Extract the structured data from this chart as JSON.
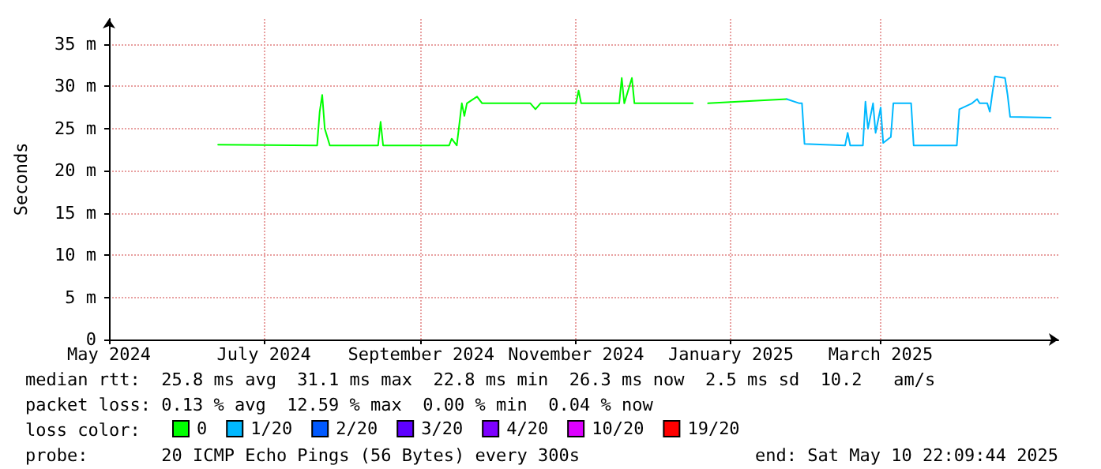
{
  "chart_data": {
    "type": "line",
    "ylabel": "Seconds",
    "x": [
      "2024-06-13",
      "2024-07-22",
      "2024-07-23",
      "2024-07-24",
      "2024-07-25",
      "2024-07-27",
      "2024-08-15",
      "2024-08-16",
      "2024-08-17",
      "2024-09-12",
      "2024-09-13",
      "2024-09-15",
      "2024-09-16",
      "2024-09-17",
      "2024-09-18",
      "2024-09-19",
      "2024-09-23",
      "2024-09-25",
      "2024-10-14",
      "2024-10-16",
      "2024-10-18",
      "2024-11-01",
      "2024-11-02",
      "2024-11-03",
      "2024-11-18",
      "2024-11-19",
      "2024-11-20",
      "2024-11-23",
      "2024-11-24",
      "2024-12-17",
      "2024-12-20",
      "2024-12-23",
      "2025-01-23",
      "2025-01-28",
      "2025-01-29",
      "2025-01-30",
      "2025-02-15",
      "2025-02-16",
      "2025-02-17",
      "2025-02-22",
      "2025-02-23",
      "2025-02-24",
      "2025-02-26",
      "2025-02-27",
      "2025-03-01",
      "2025-03-02",
      "2025-03-05",
      "2025-03-06",
      "2025-03-13",
      "2025-03-14",
      "2025-03-26",
      "2025-03-31",
      "2025-04-01",
      "2025-04-06",
      "2025-04-08",
      "2025-04-09",
      "2025-04-12",
      "2025-04-13",
      "2025-04-14",
      "2025-04-15",
      "2025-04-19",
      "2025-04-20",
      "2025-04-21",
      "2025-05-07"
    ],
    "series": [
      {
        "name": "0",
        "color": "#00ff00",
        "values": [
          23.1,
          23,
          27,
          29,
          25,
          23,
          23,
          25.8,
          23,
          23,
          23.8,
          23,
          25.5,
          28,
          26.5,
          28,
          28.8,
          28,
          28,
          27.3,
          28,
          28,
          29.5,
          28,
          28,
          31,
          28,
          31,
          28,
          28,
          null,
          28,
          28.5,
          null,
          null,
          null,
          null,
          null,
          null,
          null,
          null,
          null,
          null,
          null,
          null,
          null,
          null,
          null,
          null,
          null,
          null,
          null,
          null,
          null,
          null,
          null,
          null,
          null,
          null,
          null,
          null,
          null,
          null,
          null
        ]
      },
      {
        "name": "1/20",
        "color": "#00b8ff",
        "values": [
          null,
          null,
          null,
          null,
          null,
          null,
          null,
          null,
          null,
          null,
          null,
          null,
          null,
          null,
          null,
          null,
          null,
          null,
          null,
          null,
          null,
          null,
          null,
          null,
          null,
          null,
          null,
          null,
          null,
          null,
          null,
          null,
          28.5,
          28,
          28,
          23.2,
          23,
          24.5,
          23,
          23,
          28.2,
          25,
          28,
          24.5,
          27.5,
          23.3,
          24,
          28,
          28,
          23,
          23,
          23,
          27.3,
          28,
          28.5,
          28,
          28,
          27,
          29.2,
          31.2,
          31,
          29,
          26.4,
          26.3
        ]
      },
      {
        "name": "2/20",
        "color": "#0059ff",
        "values": [
          null,
          null,
          null,
          null,
          null,
          null,
          null,
          null,
          null,
          null,
          null,
          null,
          null,
          null,
          null,
          null,
          null,
          null,
          null,
          null,
          null,
          null,
          null,
          null,
          null,
          null,
          null,
          null,
          null,
          null,
          null,
          null,
          null,
          null,
          null,
          null,
          null,
          null,
          null,
          null,
          null,
          null,
          null,
          null,
          null,
          null,
          null,
          null,
          null,
          null,
          null,
          null,
          null,
          null,
          null,
          null,
          null,
          null,
          null,
          null,
          null,
          null,
          null,
          null
        ]
      },
      {
        "name": "3/20",
        "color": "#5e00ff",
        "values": [
          null,
          null,
          null,
          null,
          null,
          null,
          null,
          null,
          null,
          null,
          null,
          null,
          null,
          null,
          null,
          null,
          null,
          null,
          null,
          null,
          null,
          null,
          null,
          null,
          null,
          null,
          null,
          null,
          null,
          null,
          null,
          null,
          null,
          null,
          null,
          null,
          null,
          null,
          null,
          null,
          null,
          null,
          null,
          null,
          null,
          null,
          null,
          null,
          null,
          null,
          null,
          null,
          null,
          null,
          null,
          null,
          null,
          null,
          null,
          null,
          null,
          null,
          null,
          null
        ]
      },
      {
        "name": "4/20",
        "color": "#7e00ff",
        "values": [
          null,
          null,
          null,
          null,
          null,
          null,
          null,
          null,
          null,
          null,
          null,
          null,
          null,
          null,
          null,
          null,
          null,
          null,
          null,
          null,
          null,
          null,
          null,
          null,
          null,
          null,
          null,
          null,
          null,
          null,
          null,
          null,
          null,
          null,
          null,
          null,
          null,
          null,
          null,
          null,
          null,
          null,
          null,
          null,
          null,
          null,
          null,
          null,
          null,
          null,
          null,
          null,
          null,
          null,
          null,
          null,
          null,
          null,
          null,
          null,
          null,
          null,
          null,
          null
        ]
      },
      {
        "name": "10/20",
        "color": "#dd00ff",
        "values": [
          null,
          null,
          null,
          null,
          null,
          null,
          null,
          null,
          null,
          null,
          null,
          null,
          null,
          null,
          null,
          null,
          null,
          null,
          null,
          null,
          null,
          null,
          null,
          null,
          null,
          null,
          null,
          null,
          null,
          null,
          null,
          null,
          null,
          null,
          null,
          null,
          null,
          null,
          null,
          null,
          null,
          null,
          null,
          null,
          null,
          null,
          null,
          null,
          null,
          null,
          null,
          null,
          null,
          null,
          null,
          null,
          null,
          null,
          null,
          null,
          null,
          null,
          null,
          null
        ]
      },
      {
        "name": "19/20",
        "color": "#ff0000",
        "values": [
          null,
          null,
          null,
          null,
          null,
          null,
          null,
          null,
          null,
          null,
          null,
          null,
          null,
          null,
          null,
          null,
          null,
          null,
          null,
          null,
          null,
          null,
          null,
          null,
          null,
          null,
          null,
          null,
          null,
          null,
          null,
          null,
          null,
          null,
          null,
          null,
          null,
          null,
          null,
          null,
          null,
          null,
          null,
          null,
          null,
          null,
          null,
          null,
          null,
          null,
          null,
          null,
          null,
          null,
          null,
          null,
          null,
          null,
          null,
          null,
          null,
          null,
          null,
          null
        ]
      }
    ],
    "xlim": [
      "2024-05-01",
      "2025-05-10"
    ],
    "xticks": [
      {
        "value": "2024-05-01",
        "label": "May 2024"
      },
      {
        "value": "2024-07-01",
        "label": "July 2024"
      },
      {
        "value": "2024-09-01",
        "label": "September 2024"
      },
      {
        "value": "2024-11-01",
        "label": "November 2024"
      },
      {
        "value": "2025-01-01",
        "label": "January 2025"
      },
      {
        "value": "2025-03-01",
        "label": "March 2025"
      }
    ],
    "ylim": [
      0,
      38
    ],
    "yticks": [
      {
        "value": 0,
        "label": "0"
      },
      {
        "value": 5,
        "label": "5 m"
      },
      {
        "value": 10,
        "label": "10 m"
      },
      {
        "value": 15,
        "label": "15 m"
      },
      {
        "value": 20,
        "label": "20 m"
      },
      {
        "value": 25,
        "label": "25 m"
      },
      {
        "value": 30,
        "label": "30 m"
      },
      {
        "value": 35,
        "label": "35 m"
      }
    ],
    "grid": true,
    "legend": "bottom",
    "marker": "none",
    "line_style": "solid",
    "annotations": [
      "median rtt:  25.8 ms avg  31.1 ms max  22.8 ms min  26.3 ms now  2.5 ms sd  10.2   am/s",
      "packet loss: 0.13 % avg  12.59 % max  0.00 % min  0.04 % now",
      "loss color:",
      "probe:       20 ICMP Echo Pings (56 Bytes) every 300s",
      "end: Sat May 10 22:09:44 2025"
    ]
  }
}
